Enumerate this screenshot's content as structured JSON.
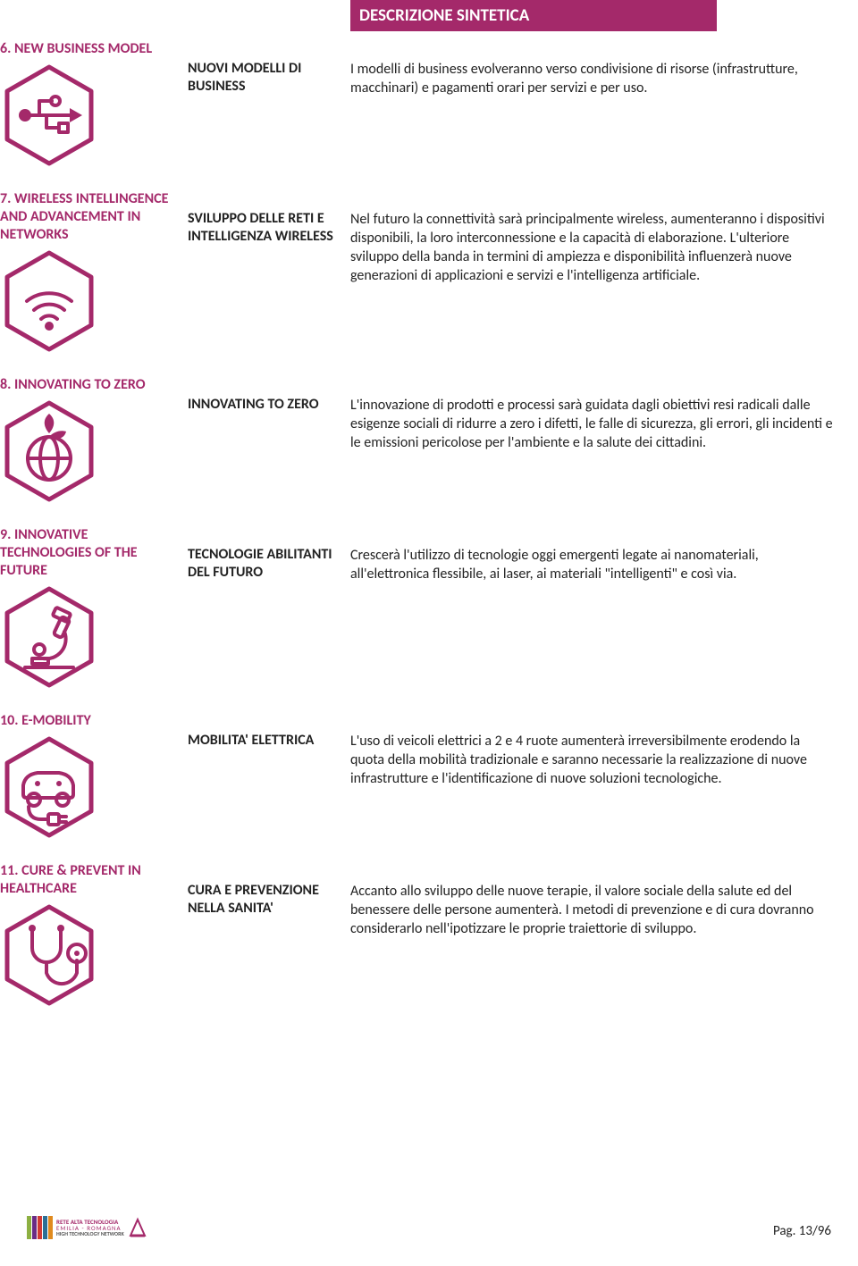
{
  "colors": {
    "brand": "#a4296a",
    "text": "#222222",
    "hex_stroke": "#a4296a",
    "hex_stroke_width": 5
  },
  "header": "DESCRIZIONE SINTETICA",
  "rows": [
    {
      "title": "6. NEW BUSINESS MODEL",
      "mid": "NUOVI MODELLI DI BUSINESS",
      "desc": "I modelli di business evolveranno verso condivisione di risorse (infrastrutture, macchinari) e pagamenti orari per servizi e per uso.",
      "icon": "usb"
    },
    {
      "title": "7. WIRELESS INTELLINGENCE AND ADVANCEMENT IN NETWORKS",
      "mid": "SVILUPPO DELLE RETI E INTELLIGENZA WIRELESS",
      "desc": "Nel futuro la connettività sarà principalmente wireless, aumenteranno i dispositivi disponibili, la loro interconnessione e la capacità di elaborazione. L'ulteriore sviluppo della banda in termini di ampiezza e disponibilità influenzerà nuove generazioni di applicazioni e servizi e l'intelligenza artificiale.",
      "icon": "wifi"
    },
    {
      "title": "8. INNOVATING TO ZERO",
      "mid": "INNOVATING TO ZERO",
      "desc": "L'innovazione di prodotti e processi sarà guidata dagli obiettivi resi radicali dalle esigenze sociali di ridurre a zero i difetti, le falle di sicurezza, gli errori, gli incidenti e le emissioni pericolose per l'ambiente e la salute dei cittadini.",
      "icon": "globe-leaf"
    },
    {
      "title": "9. INNOVATIVE TECHNOLOGIES OF THE FUTURE",
      "mid": "TECNOLOGIE ABILITANTI DEL FUTURO",
      "desc": "Crescerà l'utilizzo di tecnologie oggi emergenti legate ai nanomateriali, all'elettronica flessibile, ai laser, ai materiali \"intelligenti\" e così via.",
      "icon": "microscope"
    },
    {
      "title": "10. E-MOBILITY",
      "mid": "MOBILITA' ELETTRICA",
      "desc": "L'uso di veicoli elettrici a 2 e 4 ruote aumenterà irreversibilmente erodendo la quota della mobilità tradizionale e saranno necessarie la realizzazione di nuove infrastrutture e l'identificazione di nuove soluzioni tecnologiche.",
      "icon": "car-plug"
    },
    {
      "title": "11. CURE & PREVENT IN HEALTHCARE",
      "mid": "CURA E PREVENZIONE NELLA SANITA'",
      "desc": "Accanto allo sviluppo delle nuove terapie, il valore sociale della salute ed del benessere delle persone aumenterà. I metodi di prevenzione e di cura dovranno considerarlo nell'ipotizzare le proprie traiettorie di sviluppo.",
      "icon": "stethoscope"
    }
  ],
  "footer": {
    "page": "Pag. 13/96",
    "logo_stripes": [
      "#8db042",
      "#6a2c85",
      "#d23a35",
      "#2c6f95",
      "#e08a1e"
    ],
    "logo_line1": "RETE ALTA TECNOLOGIA",
    "logo_line2": "EMILIA - ROMAGNA",
    "logo_line3": "HIGH TECHNOLOGY NETWORK"
  }
}
